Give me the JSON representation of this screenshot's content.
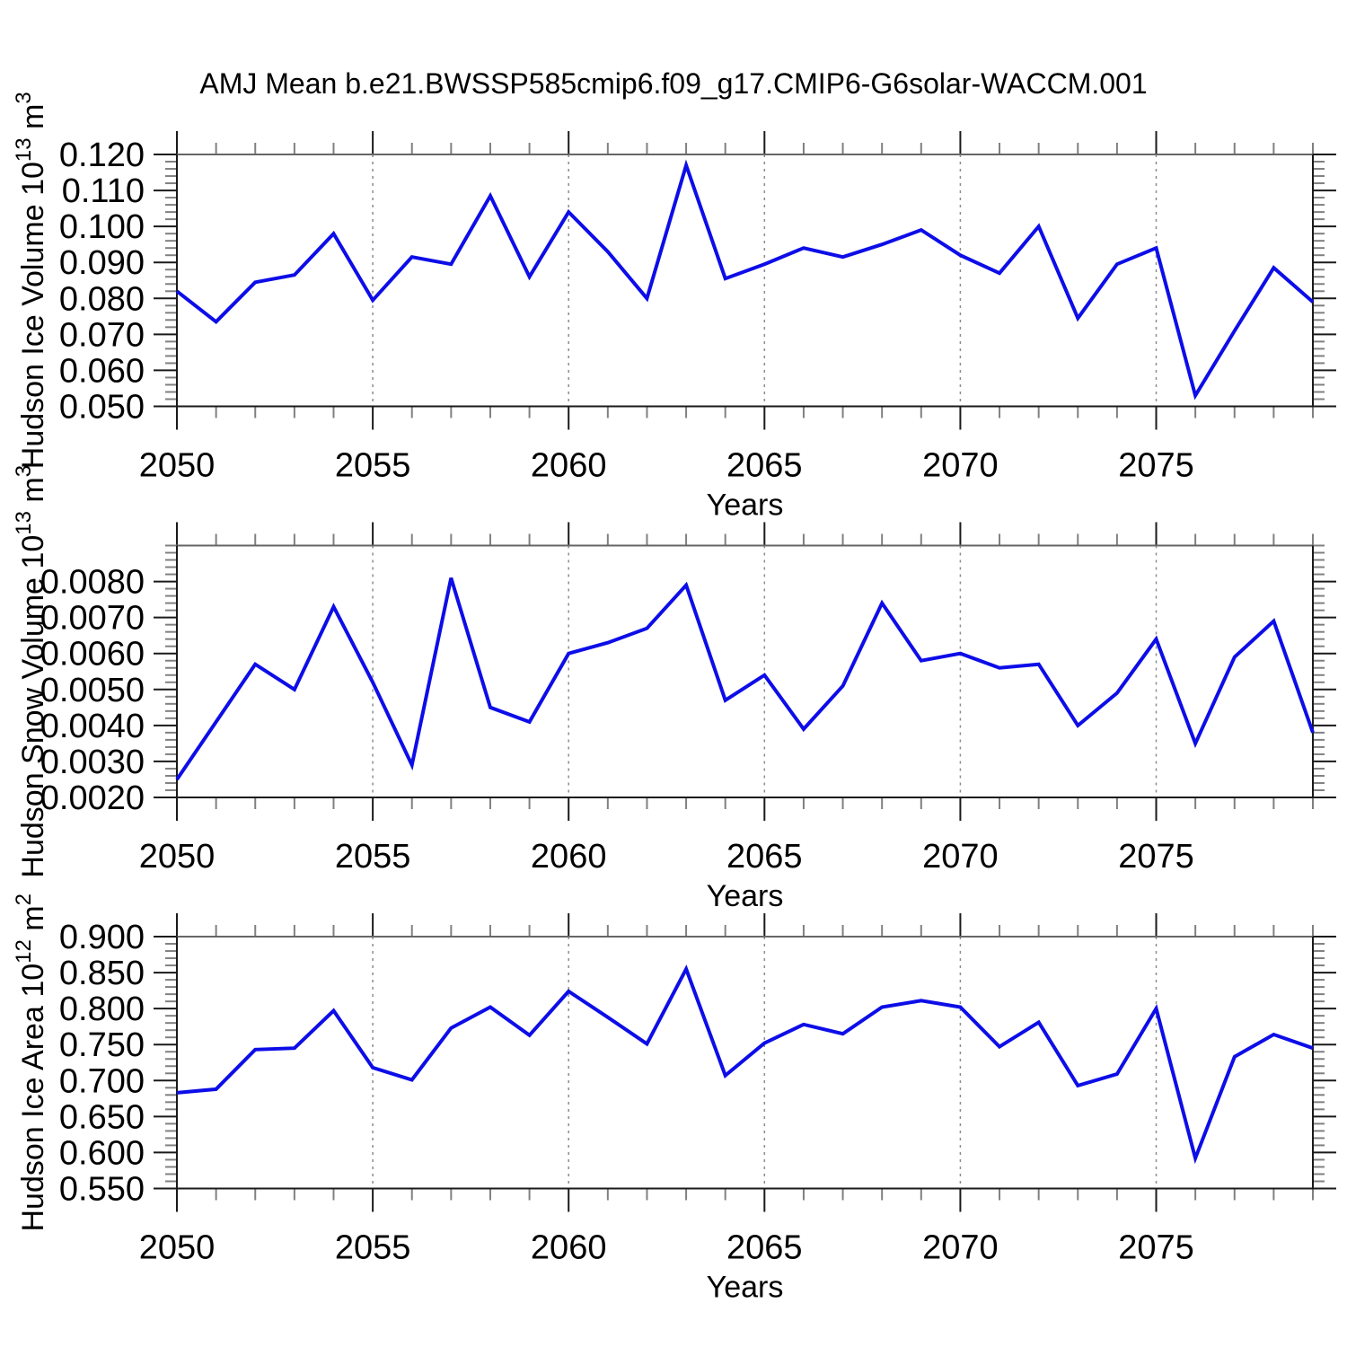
{
  "title": "AMJ Mean b.e21.BWSSP585cmip6.f09_g17.CMIP6-G6solar-WACCM.001",
  "x_axis": {
    "label": "Years",
    "min": 2050,
    "max": 2079,
    "major_tick_step": 5,
    "minor_tick_step": 1,
    "major_tick_labels": [
      "2050",
      "2055",
      "2060",
      "2065",
      "2070",
      "2075"
    ],
    "gridlines": "vertical-dashed-at-major-ticks"
  },
  "colors": {
    "line": "#0d0de8",
    "grid": "#8c8c8c",
    "frame": "#1a1a1a",
    "frame_top": "#666666",
    "major_tick": "#1a1a1a",
    "minor_tick": "#808080",
    "text": "#000000",
    "background": "#ffffff"
  },
  "chart_data": [
    {
      "type": "line",
      "name": "hudson-ice-volume",
      "xlabel": "Years",
      "ylabel": "Hudson Ice Volume 10^13 m^3",
      "ylabel_parts": [
        {
          "t": "Hudson Ice Volume 10"
        },
        {
          "t": "13",
          "sup": true
        },
        {
          "t": " m"
        },
        {
          "t": "3",
          "sup": true
        }
      ],
      "ylim": [
        0.05,
        0.12
      ],
      "y_major_step": 0.01,
      "y_major_label_max": 0.12,
      "y_minor_step": 0.002,
      "y_tick_decimals": 3,
      "y_tick_labels": [
        "0.050",
        "0.060",
        "0.070",
        "0.080",
        "0.090",
        "0.100",
        "0.110",
        "0.120"
      ],
      "x": [
        2050,
        2051,
        2052,
        2053,
        2054,
        2055,
        2056,
        2057,
        2058,
        2059,
        2060,
        2061,
        2062,
        2063,
        2064,
        2065,
        2066,
        2067,
        2068,
        2069,
        2070,
        2071,
        2072,
        2073,
        2074,
        2075,
        2076,
        2077,
        2078,
        2079
      ],
      "values": [
        0.082,
        0.0735,
        0.0845,
        0.0865,
        0.098,
        0.0795,
        0.0915,
        0.0895,
        0.1085,
        0.086,
        0.104,
        0.093,
        0.08,
        0.117,
        0.0855,
        0.0895,
        0.094,
        0.0915,
        0.095,
        0.099,
        0.092,
        0.087,
        0.1,
        0.0745,
        0.0895,
        0.094,
        0.053,
        0.071,
        0.0885,
        0.079
      ]
    },
    {
      "type": "line",
      "name": "hudson-snow-volume",
      "xlabel": "Years",
      "ylabel": "Hudson Snow Volume 10^13 m^3",
      "ylabel_parts": [
        {
          "t": "Hudson Snow Volume 10"
        },
        {
          "t": "13",
          "sup": true
        },
        {
          "t": " m"
        },
        {
          "t": "3",
          "sup": true
        }
      ],
      "ylim": [
        0.002,
        0.009
      ],
      "y_major_step": 0.001,
      "y_major_label_max": 0.008,
      "y_minor_step": 0.0002,
      "y_tick_decimals": 4,
      "y_tick_labels": [
        "0.0020",
        "0.0030",
        "0.0040",
        "0.0050",
        "0.0060",
        "0.0070",
        "0.0080"
      ],
      "x": [
        2050,
        2051,
        2052,
        2053,
        2054,
        2055,
        2056,
        2057,
        2058,
        2059,
        2060,
        2061,
        2062,
        2063,
        2064,
        2065,
        2066,
        2067,
        2068,
        2069,
        2070,
        2071,
        2072,
        2073,
        2074,
        2075,
        2076,
        2077,
        2078,
        2079
      ],
      "values": [
        0.0025,
        0.0041,
        0.0057,
        0.005,
        0.0073,
        0.0052,
        0.0029,
        0.0081,
        0.0045,
        0.0041,
        0.006,
        0.0063,
        0.0067,
        0.0079,
        0.0047,
        0.0054,
        0.0039,
        0.0051,
        0.0074,
        0.0058,
        0.006,
        0.0056,
        0.0057,
        0.004,
        0.0049,
        0.0064,
        0.0035,
        0.0059,
        0.0069,
        0.0038
      ]
    },
    {
      "type": "line",
      "name": "hudson-ice-area",
      "xlabel": "Years",
      "ylabel": "Hudson Ice Area 10^12 m^2",
      "ylabel_parts": [
        {
          "t": "Hudson Ice Area 10"
        },
        {
          "t": "12",
          "sup": true
        },
        {
          "t": " m"
        },
        {
          "t": "2",
          "sup": true
        }
      ],
      "ylim": [
        0.55,
        0.9
      ],
      "y_major_step": 0.05,
      "y_major_label_max": 0.9,
      "y_minor_step": 0.01,
      "y_tick_decimals": 3,
      "y_tick_labels": [
        "0.550",
        "0.600",
        "0.650",
        "0.700",
        "0.750",
        "0.800",
        "0.850",
        "0.900"
      ],
      "x": [
        2050,
        2051,
        2052,
        2053,
        2054,
        2055,
        2056,
        2057,
        2058,
        2059,
        2060,
        2061,
        2062,
        2063,
        2064,
        2065,
        2066,
        2067,
        2068,
        2069,
        2070,
        2071,
        2072,
        2073,
        2074,
        2075,
        2076,
        2077,
        2078,
        2079
      ],
      "values": [
        0.683,
        0.688,
        0.743,
        0.745,
        0.797,
        0.718,
        0.701,
        0.773,
        0.802,
        0.763,
        0.824,
        0.788,
        0.751,
        0.855,
        0.707,
        0.752,
        0.778,
        0.765,
        0.802,
        0.811,
        0.802,
        0.747,
        0.781,
        0.693,
        0.709,
        0.8,
        0.592,
        0.733,
        0.764,
        0.745
      ]
    }
  ]
}
